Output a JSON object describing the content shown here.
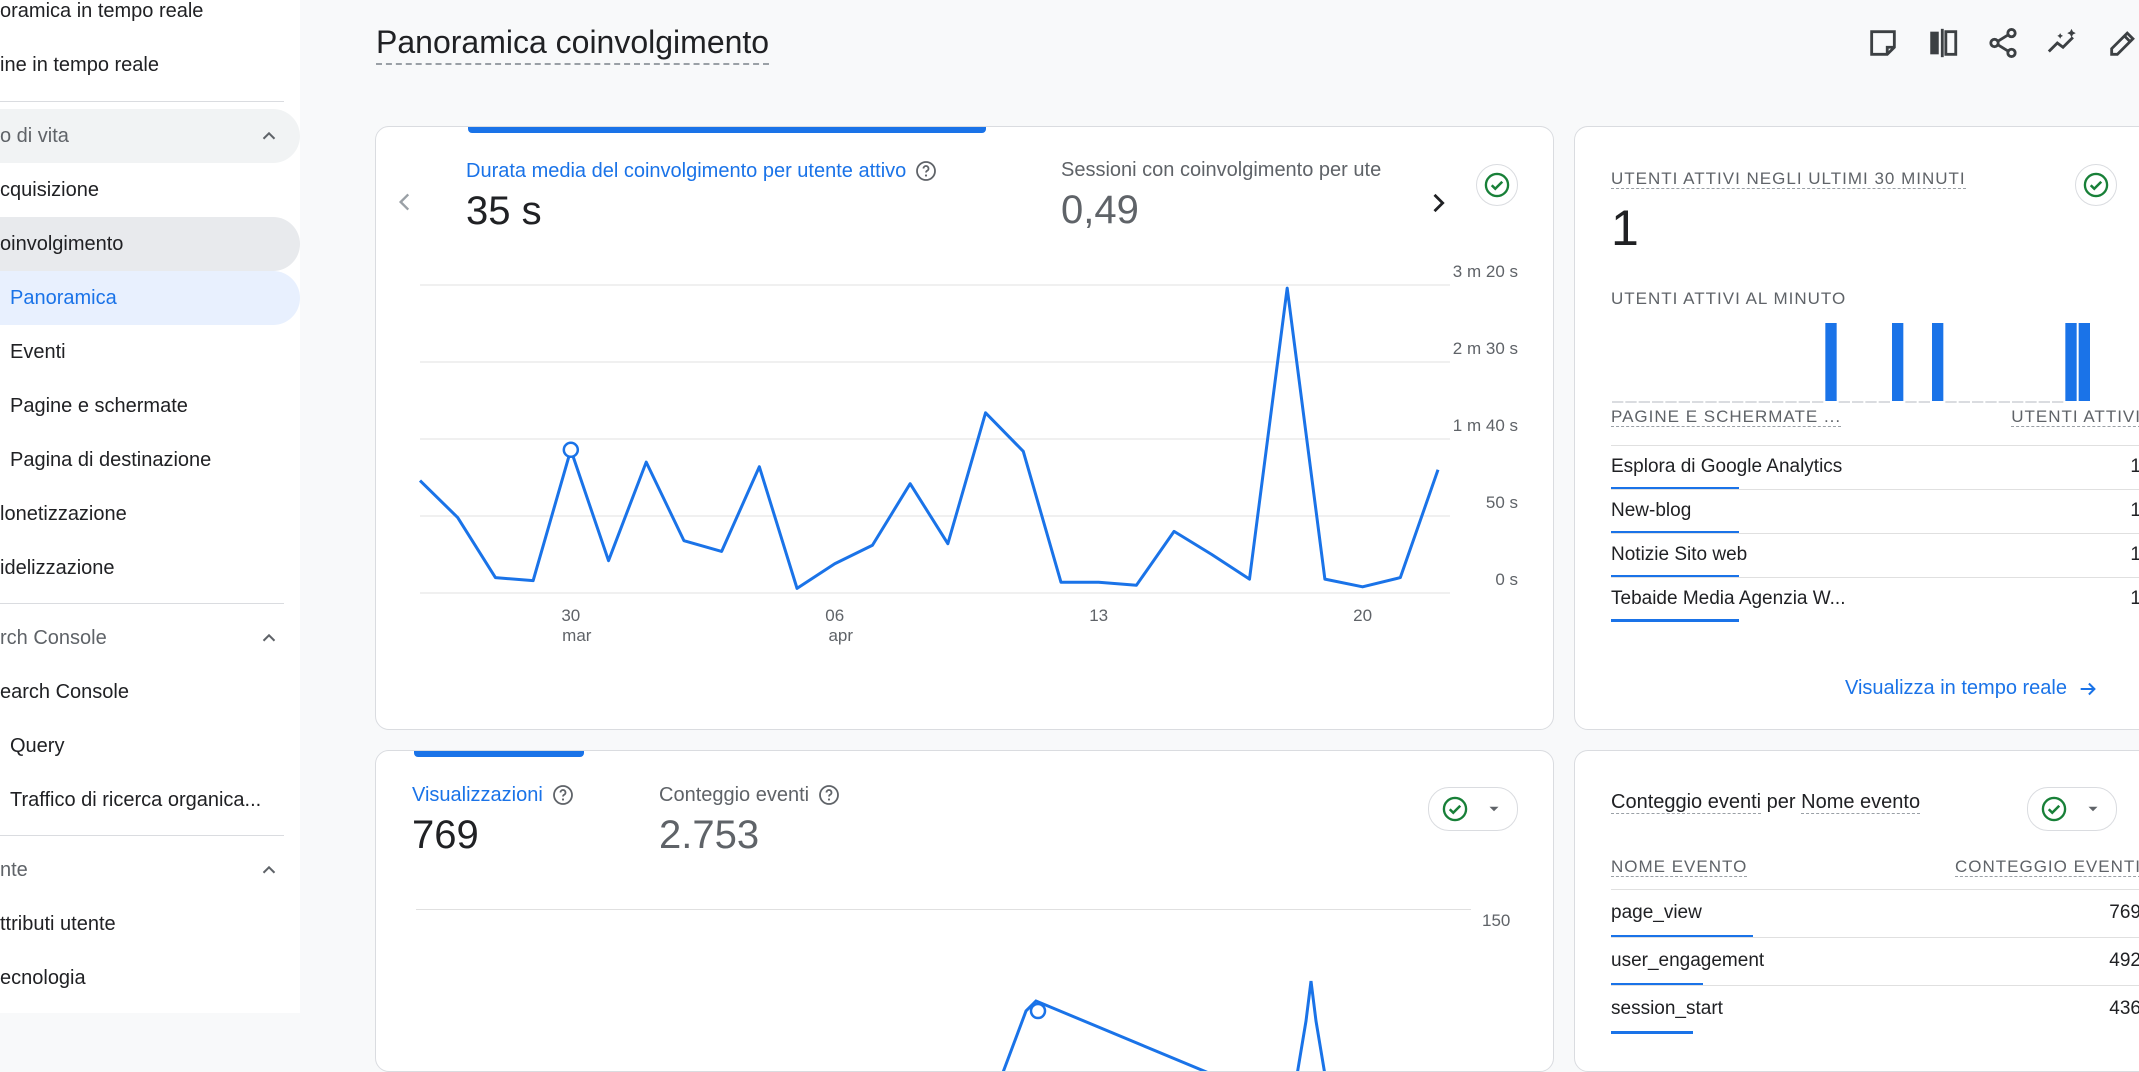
{
  "sidebar": {
    "items": [
      {
        "label": "oramica in tempo reale"
      },
      {
        "label": "ine in tempo reale"
      },
      {
        "label": "o di vita"
      },
      {
        "label": "cquisizione"
      },
      {
        "label": "oinvolgimento"
      },
      {
        "label": "Panoramica"
      },
      {
        "label": "Eventi"
      },
      {
        "label": "Pagine e schermate"
      },
      {
        "label": "Pagina di destinazione"
      },
      {
        "label": "lonetizzazione"
      },
      {
        "label": "idelizzazione"
      },
      {
        "label": "rch Console"
      },
      {
        "label": "earch Console"
      },
      {
        "label": "Query"
      },
      {
        "label": "Traffico di ricerca organica..."
      },
      {
        "label": "nte"
      },
      {
        "label": "ttributi utente"
      },
      {
        "label": "ecnologia"
      }
    ]
  },
  "header": {
    "title": "Panoramica coinvolgimento",
    "toolbar_icons": [
      "note-icon",
      "compare-icon",
      "share-icon",
      "insights-icon",
      "edit-icon"
    ]
  },
  "engagement_card": {
    "metric1_label": "Durata media del coinvolgimento per utente attivo",
    "metric1_value": "35 s",
    "metric2_label": "Sessioni con coinvolgimento per ute",
    "metric2_value": "0,49",
    "chart_data": {
      "type": "line",
      "series": [
        {
          "values": [
            73,
            49,
            10,
            8,
            93,
            21,
            85,
            34,
            27,
            82,
            3,
            19,
            31,
            71,
            32,
            117,
            92,
            7,
            7,
            5,
            40,
            25,
            9,
            198,
            9,
            4,
            10,
            80
          ]
        }
      ],
      "y_ticks": [
        "0 s",
        "50 s",
        "1 m 40 s",
        "2 m 30 s",
        "3 m 20 s"
      ],
      "x_ticks": [
        {
          "day": "30",
          "month": "mar"
        },
        {
          "day": "06",
          "month": "apr"
        },
        {
          "day": "13",
          "month": ""
        },
        {
          "day": "20",
          "month": ""
        }
      ],
      "ylim": [
        0,
        200
      ],
      "color": "#1a73e8"
    }
  },
  "realtime_card": {
    "title": "UTENTI ATTIVI NEGLI ULTIMI 30 MINUTI",
    "value": "1",
    "per_minute_label": "UTENTI ATTIVI AL MINUTO",
    "per_minute": [
      0,
      0,
      0,
      0,
      0,
      0,
      0,
      0,
      0,
      0,
      0,
      0,
      0,
      0,
      0,
      0,
      1,
      0,
      0,
      0,
      0,
      1,
      0,
      0,
      1,
      0,
      0,
      0,
      0,
      0,
      0,
      0,
      0,
      0,
      1,
      1
    ],
    "table_headers": [
      "PAGINE E SCHERMATE ...",
      "UTENTI ATTIVI"
    ],
    "rows": [
      {
        "name": "Esplora di Google Analytics",
        "value": "1"
      },
      {
        "name": "New-blog",
        "value": "1"
      },
      {
        "name": "Notizie Sito web",
        "value": "1"
      },
      {
        "name": "Tebaide Media Agenzia W...",
        "value": "1"
      }
    ],
    "link": "Visualizza in tempo reale"
  },
  "views_card": {
    "metric1_label": "Visualizzazioni",
    "metric1_value": "769",
    "metric2_label": "Conteggio eventi",
    "metric2_value": "2.753",
    "y_tick_top": "150"
  },
  "events_card": {
    "title_part1": "Conteggio eventi",
    "title_part2": "per",
    "title_part3": "Nome evento",
    "table_headers": [
      "NOME EVENTO",
      "CONTEGGIO EVENTI"
    ],
    "rows": [
      {
        "name": "page_view",
        "value": "769"
      },
      {
        "name": "user_engagement",
        "value": "492"
      },
      {
        "name": "session_start",
        "value": "436"
      }
    ]
  },
  "colors": {
    "accent": "#1a73e8",
    "success": "#188038"
  }
}
